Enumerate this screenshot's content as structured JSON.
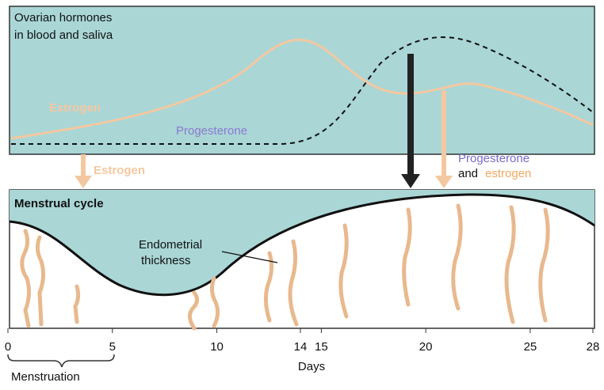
{
  "hormone_panel": {
    "title_lines": [
      "Ovarian hormones",
      "in blood and saliva"
    ],
    "estrogen_label": "Estrogen",
    "progesterone_label": "Progesterone"
  },
  "arrows": {
    "estrogen": "Estrogen",
    "progesterone": "Progesterone",
    "and": "and",
    "estrogen_2": "estrogen"
  },
  "cycle_panel": {
    "title": "Menstrual cycle",
    "thickness_lines": [
      "Endometrial",
      "thickness"
    ]
  },
  "axis": {
    "ticks": [
      0,
      5,
      10,
      14,
      15,
      20,
      25,
      28
    ],
    "label": "Days",
    "bracket_label": "Menstruation"
  }
}
